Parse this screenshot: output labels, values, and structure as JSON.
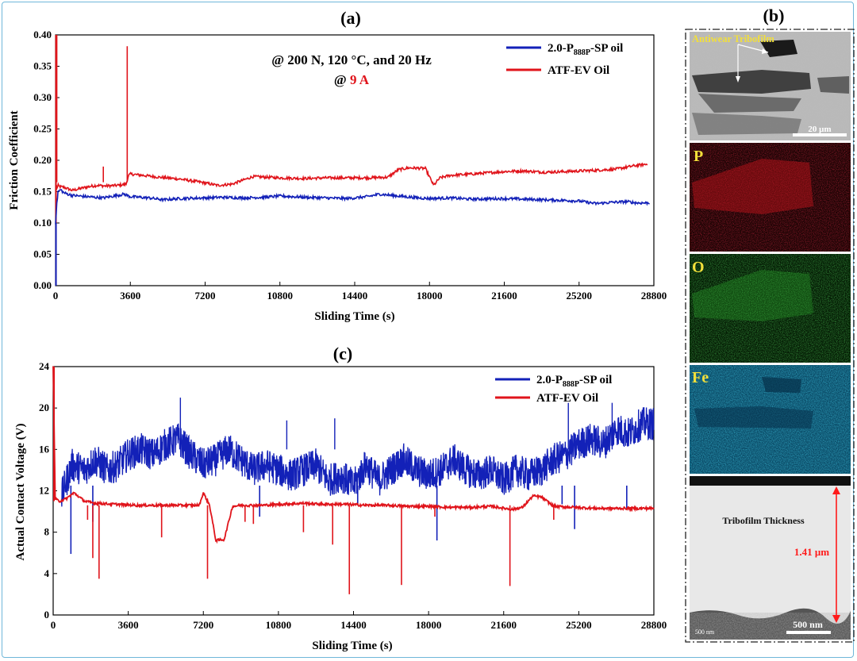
{
  "panel_labels": {
    "a": "(a)",
    "b": "(b)",
    "c": "(c)"
  },
  "colors": {
    "blue": "#1321b8",
    "red": "#e0141b",
    "yellow": "#f2df3a",
    "arrow": "#ff1a1a"
  },
  "chart_data": [
    {
      "id": "a",
      "type": "line",
      "title": "(a)",
      "xlabel": "Sliding Time (s)",
      "ylabel": "Friction Coefficient",
      "xlim": [
        0,
        28800
      ],
      "ylim": [
        0,
        0.4
      ],
      "xticks": [
        0,
        3600,
        7200,
        10800,
        14400,
        18000,
        21600,
        25200,
        28800
      ],
      "yticks": [
        "0.00",
        "0.05",
        "0.10",
        "0.15",
        "0.20",
        "0.25",
        "0.30",
        "0.35",
        "0.40"
      ],
      "annotation_line1": "@ 200 N, 120 °C, and 20 Hz",
      "annotation_line2_prefix": "@ ",
      "annotation_line2_value": "9 A",
      "legend": [
        {
          "label_main": "2.0-P",
          "label_sub": "888P",
          "label_tail": "-SP oil",
          "color": "#1321b8"
        },
        {
          "label_main": "ATF-EV Oil",
          "label_sub": "",
          "label_tail": "",
          "color": "#e0141b"
        }
      ],
      "series": [
        {
          "name": "2.0-P888P-SP oil",
          "color": "#1321b8",
          "x": [
            0,
            60,
            120,
            250,
            400,
            800,
            1500,
            2300,
            2800,
            3300,
            3600,
            4500,
            5200,
            6000,
            7200,
            8000,
            9000,
            10000,
            10800,
            12000,
            13000,
            14000,
            14400,
            15000,
            15600,
            16500,
            17500,
            18000,
            19000,
            20000,
            21600,
            22500,
            23500,
            24500,
            25200,
            26000,
            26800,
            27500,
            28000,
            28600
          ],
          "y": [
            0.1,
            0.13,
            0.15,
            0.153,
            0.148,
            0.144,
            0.142,
            0.14,
            0.143,
            0.146,
            0.142,
            0.14,
            0.137,
            0.139,
            0.14,
            0.141,
            0.14,
            0.141,
            0.143,
            0.141,
            0.14,
            0.139,
            0.14,
            0.142,
            0.146,
            0.143,
            0.14,
            0.139,
            0.14,
            0.138,
            0.139,
            0.138,
            0.137,
            0.136,
            0.135,
            0.131,
            0.133,
            0.134,
            0.132,
            0.132
          ]
        },
        {
          "name": "ATF-EV Oil",
          "color": "#e0141b",
          "x": [
            0,
            40,
            80,
            130,
            200,
            400,
            800,
            1200,
            1600,
            2000,
            2400,
            3000,
            3400,
            3500,
            3600,
            4200,
            5000,
            6000,
            7000,
            7800,
            8500,
            9000,
            9500,
            10800,
            12000,
            13000,
            14400,
            15000,
            16000,
            16500,
            17000,
            17800,
            18200,
            18500,
            19000,
            20000,
            21600,
            22500,
            23500,
            24500,
            25200,
            26000,
            27000,
            27800,
            28500
          ],
          "y": [
            0.4,
            0.16,
            0.155,
            0.16,
            0.158,
            0.157,
            0.152,
            0.155,
            0.158,
            0.16,
            0.159,
            0.16,
            0.162,
            0.175,
            0.178,
            0.176,
            0.173,
            0.17,
            0.165,
            0.16,
            0.162,
            0.168,
            0.174,
            0.172,
            0.171,
            0.172,
            0.172,
            0.172,
            0.173,
            0.185,
            0.188,
            0.187,
            0.16,
            0.172,
            0.176,
            0.178,
            0.182,
            0.183,
            0.181,
            0.182,
            0.183,
            0.184,
            0.186,
            0.191,
            0.194
          ]
        }
      ],
      "spikes": [
        {
          "series": "ATF-EV Oil",
          "x": 3450,
          "y": 0.382
        },
        {
          "series": "ATF-EV Oil",
          "x": 2300,
          "y": 0.19
        },
        {
          "series": "ATF-EV Oil",
          "x": 60,
          "y": 0.4
        }
      ]
    },
    {
      "id": "c",
      "type": "line",
      "title": "(c)",
      "xlabel": "Sliding Time (s)",
      "ylabel": "Actual Contact Voltage (V)",
      "xlim": [
        0,
        28800
      ],
      "ylim": [
        0,
        24
      ],
      "xticks": [
        0,
        3600,
        7200,
        10800,
        14400,
        18000,
        21600,
        25200,
        28800
      ],
      "yticks": [
        "0",
        "4",
        "8",
        "12",
        "16",
        "20",
        "24"
      ],
      "legend": [
        {
          "label_main": "2.0-P",
          "label_sub": "888P",
          "label_tail": "-SP oil",
          "color": "#1321b8"
        },
        {
          "label_main": "ATF-EV Oil",
          "label_sub": "",
          "label_tail": "",
          "color": "#e0141b"
        }
      ],
      "series": [
        {
          "name": "2.0-P888P-SP oil",
          "color": "#1321b8",
          "x": [
            400,
            900,
            1500,
            2000,
            2600,
            3100,
            3600,
            4200,
            4800,
            5400,
            6000,
            6600,
            7200,
            7800,
            8400,
            9000,
            9600,
            10200,
            10800,
            11400,
            12000,
            12600,
            13200,
            13800,
            14400,
            15000,
            15600,
            16200,
            16800,
            17400,
            18000,
            18600,
            19200,
            19800,
            20400,
            21000,
            21600,
            22200,
            22800,
            23400,
            24000,
            24600,
            25200,
            25800,
            26400,
            27000,
            27600,
            28200,
            28800
          ],
          "y": [
            11.5,
            14.5,
            14.0,
            15.0,
            14.0,
            14.5,
            15.5,
            16.0,
            15.5,
            16.5,
            17.0,
            15.5,
            14.5,
            15.0,
            16.0,
            15.0,
            14.0,
            14.5,
            14.0,
            13.5,
            14.0,
            14.5,
            13.0,
            13.5,
            12.5,
            14.5,
            13.0,
            14.0,
            15.0,
            14.0,
            13.5,
            14.0,
            15.0,
            14.0,
            13.5,
            14.0,
            13.0,
            14.0,
            13.5,
            14.0,
            15.0,
            15.5,
            16.5,
            17.0,
            16.5,
            18.0,
            17.5,
            18.5,
            18.5
          ]
        },
        {
          "name": "ATF-EV Oil",
          "color": "#e0141b",
          "x": [
            0,
            100,
            300,
            600,
            1000,
            1500,
            2000,
            3000,
            4000,
            5000,
            6000,
            7000,
            7200,
            7500,
            7800,
            8200,
            8600,
            9000,
            10000,
            11000,
            12000,
            13000,
            14000,
            15000,
            16000,
            17000,
            18000,
            19000,
            20000,
            21000,
            22000,
            22500,
            23000,
            23400,
            24000,
            25000,
            26000,
            27000,
            28000,
            28800
          ],
          "y": [
            24,
            11.2,
            11.0,
            11.2,
            11.8,
            11.0,
            10.8,
            10.7,
            10.6,
            10.6,
            10.6,
            10.6,
            11.8,
            10.6,
            7.2,
            7.3,
            10.5,
            10.6,
            10.6,
            10.7,
            10.8,
            10.7,
            10.7,
            10.6,
            10.6,
            10.5,
            10.5,
            10.4,
            10.4,
            10.5,
            10.2,
            10.4,
            11.5,
            11.4,
            10.5,
            10.4,
            10.3,
            10.3,
            10.3,
            10.3
          ]
        }
      ],
      "blue_dips": [
        {
          "x": 850,
          "y": 5.9
        },
        {
          "x": 1900,
          "y": 9.0
        },
        {
          "x": 9900,
          "y": 9.5
        },
        {
          "x": 14600,
          "y": 10.6
        },
        {
          "x": 18400,
          "y": 7.2
        },
        {
          "x": 24400,
          "y": 10.7
        },
        {
          "x": 25000,
          "y": 8.3
        },
        {
          "x": 27500,
          "y": 10.2
        }
      ],
      "blue_peaks": [
        {
          "x": 6100,
          "y": 21.0
        },
        {
          "x": 11200,
          "y": 18.8
        },
        {
          "x": 13500,
          "y": 19.0
        },
        {
          "x": 24700,
          "y": 20.5
        },
        {
          "x": 26800,
          "y": 20.5
        }
      ],
      "red_dips": [
        {
          "x": 1650,
          "y": 9.2
        },
        {
          "x": 1900,
          "y": 5.5
        },
        {
          "x": 2200,
          "y": 3.5
        },
        {
          "x": 5200,
          "y": 7.5
        },
        {
          "x": 7400,
          "y": 3.5
        },
        {
          "x": 9200,
          "y": 9.0
        },
        {
          "x": 9600,
          "y": 8.8
        },
        {
          "x": 12000,
          "y": 8.0
        },
        {
          "x": 13400,
          "y": 6.8
        },
        {
          "x": 14200,
          "y": 2.0
        },
        {
          "x": 16700,
          "y": 2.9
        },
        {
          "x": 18300,
          "y": 9.5
        },
        {
          "x": 21900,
          "y": 2.8
        },
        {
          "x": 24000,
          "y": 9.2
        }
      ]
    }
  ],
  "micrographs": {
    "sem_label": "Antiwear Tribofilm",
    "sem_scale": "20 μm",
    "eds_maps": [
      {
        "element": "P",
        "color": "#e0141b"
      },
      {
        "element": "O",
        "color": "#2aa52a"
      },
      {
        "element": "Fe",
        "color": "#19a6c8"
      }
    ],
    "cross_section_label": "Tribofilm Thickness",
    "thickness_value": "1.41 μm",
    "cross_scale": "500 nm",
    "cross_scale_small": "500 nm"
  }
}
